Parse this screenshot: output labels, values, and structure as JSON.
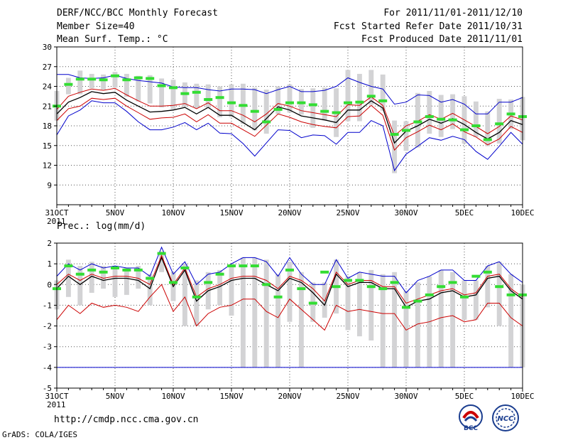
{
  "header": {
    "title": "DERF/NCC/BCC Monthly Forecast",
    "member_size": "Member Size=40",
    "variable": "Mean Surf. Temp.: °C",
    "period": "For 2011/11/01-2011/12/10",
    "refer_date": "Fcst Started Refer Date 2011/10/31",
    "produced_date": "Fcst Produced Date 2011/11/01"
  },
  "footer": {
    "url": "http://cmdp.ncc.cma.gov.cn",
    "grads": "GrADS: COLA/IGES",
    "logo_bcc": "BCC",
    "logo_ncc": "NCC"
  },
  "colors": {
    "mean": "#000000",
    "spread": "#cc0000",
    "extreme": "#0000cc",
    "box": "#d3d3d5",
    "median": "#33dd33",
    "grid": "#555555"
  },
  "chart_data": [
    {
      "type": "box-line",
      "title": "Mean Surf. Temp.: °C",
      "xlabel": "",
      "ylabel": "°C",
      "ylim": [
        6,
        30
      ],
      "yticks": [
        9,
        12,
        15,
        18,
        21,
        24,
        27,
        30
      ],
      "xtick_labels": [
        "31OCT",
        "5NOV",
        "10NOV",
        "15NOV",
        "20NOV",
        "25NOV",
        "30NOV",
        "5DEC",
        "10DEC"
      ],
      "xtick_sublabel": "2011",
      "x": [
        "31OCT",
        "1NOV",
        "2NOV",
        "3NOV",
        "4NOV",
        "5NOV",
        "6NOV",
        "7NOV",
        "8NOV",
        "9NOV",
        "10NOV",
        "11NOV",
        "12NOV",
        "13NOV",
        "14NOV",
        "15NOV",
        "16NOV",
        "17NOV",
        "18NOV",
        "19NOV",
        "20NOV",
        "21NOV",
        "22NOV",
        "23NOV",
        "24NOV",
        "25NOV",
        "26NOV",
        "27NOV",
        "28NOV",
        "29NOV",
        "30NOV",
        "1DEC",
        "2DEC",
        "3DEC",
        "4DEC",
        "5DEC",
        "6DEC",
        "7DEC",
        "8DEC",
        "9DEC",
        "10DEC"
      ],
      "series": [
        {
          "name": "ensemble mean",
          "values": [
            19.8,
            21.6,
            22.3,
            23.2,
            22.9,
            23.1,
            21.9,
            21.0,
            20.1,
            20.2,
            20.4,
            20.8,
            19.8,
            20.8,
            19.6,
            19.6,
            18.5,
            17.4,
            19.1,
            20.9,
            20.4,
            19.5,
            19.2,
            18.9,
            18.5,
            20.4,
            20.4,
            21.8,
            20.7,
            15.4,
            17.2,
            18.0,
            19.0,
            18.4,
            19.1,
            18.2,
            17.0,
            16.0,
            17.0,
            18.8,
            18.2
          ]
        },
        {
          "name": "mean + std",
          "values": [
            20.5,
            22.5,
            23.1,
            23.6,
            23.4,
            23.7,
            22.7,
            21.8,
            21.0,
            21.0,
            21.1,
            21.4,
            20.6,
            21.5,
            20.3,
            20.3,
            19.6,
            18.6,
            19.8,
            21.4,
            21.0,
            20.3,
            20.0,
            19.7,
            19.4,
            21.2,
            21.1,
            22.4,
            21.1,
            16.5,
            18.0,
            18.7,
            19.7,
            19.0,
            19.9,
            18.9,
            17.9,
            16.8,
            17.9,
            19.5,
            18.9
          ]
        },
        {
          "name": "mean - std",
          "values": [
            18.8,
            20.6,
            21.0,
            22.2,
            22.0,
            22.2,
            21.0,
            20.0,
            19.0,
            19.2,
            19.3,
            19.8,
            18.6,
            19.7,
            18.4,
            18.4,
            17.4,
            16.4,
            18.1,
            19.8,
            19.3,
            18.6,
            18.2,
            17.9,
            17.7,
            19.4,
            19.5,
            21.1,
            19.6,
            14.3,
            16.2,
            17.1,
            18.1,
            17.4,
            18.3,
            17.1,
            16.3,
            15.1,
            16.0,
            17.9,
            17.0
          ]
        },
        {
          "name": "ensemble max",
          "values": [
            25.8,
            25.8,
            25.3,
            25.2,
            25.3,
            25.7,
            25.2,
            24.9,
            24.7,
            24.5,
            23.9,
            23.8,
            23.8,
            23.5,
            23.3,
            23.6,
            23.6,
            23.5,
            22.9,
            23.5,
            24.0,
            23.2,
            23.2,
            23.4,
            24.0,
            25.3,
            24.6,
            24.0,
            23.6,
            21.3,
            21.6,
            22.7,
            22.6,
            21.6,
            22.0,
            21.3,
            19.8,
            19.8,
            21.6,
            21.6,
            22.3
          ]
        },
        {
          "name": "ensemble min",
          "values": [
            16.6,
            19.5,
            20.4,
            21.8,
            21.5,
            21.5,
            20.2,
            18.6,
            17.4,
            17.4,
            17.8,
            18.5,
            17.4,
            18.4,
            16.9,
            16.8,
            15.3,
            13.4,
            15.4,
            17.4,
            17.3,
            16.2,
            16.6,
            16.5,
            15.2,
            17.0,
            17.0,
            18.8,
            18.0,
            11.2,
            13.7,
            14.9,
            16.2,
            15.8,
            16.4,
            15.9,
            14.1,
            12.9,
            14.9,
            17.0,
            15.2
          ]
        }
      ],
      "boxes": {
        "upper": [
          23.3,
          25.3,
          26.4,
          25.9,
          25.8,
          26.2,
          25.9,
          25.6,
          25.7,
          25.2,
          25.0,
          24.6,
          24.4,
          24.3,
          24.0,
          24.3,
          24.4,
          23.8,
          23.5,
          24.0,
          24.3,
          23.6,
          23.7,
          23.8,
          23.7,
          26.5,
          25.9,
          26.5,
          25.8,
          18.8,
          18.7,
          23.0,
          23.3,
          22.7,
          22.8,
          22.5,
          21.7,
          20.2,
          22.1,
          22.0,
          22.4
        ],
        "lower": [
          18.8,
          22.8,
          22.8,
          23.7,
          23.5,
          23.8,
          22.4,
          21.7,
          21.4,
          20.8,
          20.5,
          20.9,
          20.7,
          20.7,
          19.3,
          19.3,
          18.3,
          17.3,
          16.8,
          19.8,
          20.0,
          19.7,
          17.7,
          18.8,
          16.3,
          18.7,
          18.7,
          21.2,
          20.3,
          10.8,
          14.2,
          14.7,
          16.8,
          16.3,
          17.5,
          15.3,
          16.3,
          14.9,
          15.3,
          17.5,
          15.8
        ],
        "median": [
          21.0,
          24.3,
          25.1,
          25.1,
          25.0,
          25.6,
          25.0,
          25.3,
          25.2,
          24.1,
          23.8,
          22.9,
          23.1,
          22.0,
          22.3,
          21.5,
          21.1,
          20.2,
          18.6,
          20.5,
          21.5,
          21.5,
          21.2,
          20.2,
          20.0,
          21.5,
          21.6,
          22.5,
          21.8,
          16.7,
          17.3,
          18.6,
          19.4,
          19.0,
          18.9,
          17.4,
          18.0,
          15.9,
          18.3,
          19.8,
          19.4
        ]
      }
    },
    {
      "type": "box-line",
      "title": "Prec.: log(mm/d)",
      "xlabel": "",
      "ylabel": "log(mm/d)",
      "ylim": [
        -5,
        2
      ],
      "yticks": [
        -5,
        -4,
        -3,
        -2,
        -1,
        0,
        1,
        2
      ],
      "xtick_labels": [
        "31OCT",
        "5NOV",
        "10NOV",
        "15NOV",
        "20NOV",
        "25NOV",
        "30NOV",
        "5DEC",
        "10DEC"
      ],
      "xtick_sublabel": "2011",
      "x": [
        "31OCT",
        "1NOV",
        "2NOV",
        "3NOV",
        "4NOV",
        "5NOV",
        "6NOV",
        "7NOV",
        "8NOV",
        "9NOV",
        "10NOV",
        "11NOV",
        "12NOV",
        "13NOV",
        "14NOV",
        "15NOV",
        "16NOV",
        "17NOV",
        "18NOV",
        "19NOV",
        "20NOV",
        "21NOV",
        "22NOV",
        "23NOV",
        "24NOV",
        "25NOV",
        "26NOV",
        "27NOV",
        "28NOV",
        "29NOV",
        "30NOV",
        "1DEC",
        "2DEC",
        "3DEC",
        "4DEC",
        "5DEC",
        "6DEC",
        "7DEC",
        "8DEC",
        "9DEC",
        "10DEC"
      ],
      "series": [
        {
          "name": "ensemble mean",
          "values": [
            -0.2,
            0.4,
            0.0,
            0.4,
            0.2,
            0.3,
            0.3,
            0.2,
            -0.2,
            1.3,
            -0.1,
            0.7,
            -0.8,
            -0.3,
            -0.1,
            0.2,
            0.3,
            0.3,
            0.0,
            -0.3,
            0.3,
            0.1,
            -0.4,
            -1.0,
            0.5,
            -0.1,
            0.1,
            0.1,
            -0.2,
            -0.2,
            -1.1,
            -0.8,
            -0.7,
            -0.4,
            -0.3,
            -0.6,
            -0.5,
            0.3,
            0.4,
            -0.3,
            -0.7
          ]
        },
        {
          "name": "mean + std",
          "values": [
            0.0,
            0.5,
            0.2,
            0.5,
            0.3,
            0.4,
            0.4,
            0.3,
            0.0,
            1.4,
            0.0,
            0.8,
            -0.6,
            -0.2,
            0.0,
            0.3,
            0.4,
            0.4,
            0.2,
            -0.2,
            0.4,
            0.2,
            -0.2,
            -0.8,
            0.6,
            0.0,
            0.2,
            0.2,
            -0.1,
            -0.1,
            -0.9,
            -0.7,
            -0.5,
            -0.3,
            -0.2,
            -0.5,
            -0.4,
            0.4,
            0.5,
            -0.2,
            -0.6
          ]
        },
        {
          "name": "mean - std",
          "values": [
            -1.7,
            -1.0,
            -1.4,
            -0.9,
            -1.1,
            -1.0,
            -1.1,
            -1.3,
            -0.6,
            0.0,
            -1.3,
            -0.6,
            -2.0,
            -1.4,
            -1.1,
            -1.0,
            -0.7,
            -0.7,
            -1.3,
            -1.6,
            -0.7,
            -1.2,
            -1.7,
            -2.2,
            -1.0,
            -1.3,
            -1.2,
            -1.3,
            -1.4,
            -1.4,
            -2.2,
            -1.9,
            -1.8,
            -1.6,
            -1.5,
            -1.8,
            -1.7,
            -0.9,
            -0.9,
            -1.6,
            -2.0
          ]
        },
        {
          "name": "ensemble max",
          "values": [
            0.4,
            1.0,
            0.7,
            1.0,
            0.8,
            0.9,
            0.8,
            0.8,
            0.4,
            1.8,
            0.5,
            1.1,
            0.0,
            0.5,
            0.6,
            1.0,
            1.3,
            1.3,
            1.1,
            0.4,
            1.3,
            0.5,
            0.0,
            0.0,
            1.2,
            0.3,
            0.6,
            0.5,
            0.4,
            0.4,
            -0.4,
            0.2,
            0.4,
            0.7,
            0.7,
            0.2,
            0.2,
            0.9,
            1.1,
            0.5,
            0.1
          ]
        },
        {
          "name": "ensemble min",
          "values": [
            -4.0,
            -4.0,
            -4.0,
            -4.0,
            -4.0,
            -4.0,
            -4.0,
            -4.0,
            -4.0,
            -4.0,
            -4.0,
            -4.0,
            -4.0,
            -4.0,
            -4.0,
            -4.0,
            -4.0,
            -4.0,
            -4.0,
            -4.0,
            -4.0,
            -4.0,
            -4.0,
            -4.0,
            -4.0,
            -4.0,
            -4.0,
            -4.0,
            -4.0,
            -4.0,
            -4.0,
            -4.0,
            -4.0,
            -4.0,
            -4.0,
            -4.0,
            -4.0,
            -4.0,
            -4.0,
            -4.0,
            -4.0
          ]
        }
      ],
      "boxes": {
        "upper": [
          0.2,
          1.2,
          0.9,
          1.1,
          0.9,
          0.9,
          0.8,
          0.9,
          0.5,
          1.6,
          0.6,
          1.0,
          0.2,
          0.6,
          0.7,
          1.0,
          1.3,
          1.3,
          1.2,
          0.5,
          1.1,
          0.6,
          0.1,
          0.1,
          1.2,
          0.4,
          0.6,
          0.7,
          0.5,
          0.6,
          -0.3,
          0.1,
          0.4,
          0.7,
          0.6,
          0.2,
          0.2,
          0.9,
          1.1,
          0.5,
          0.0
        ],
        "lower": [
          -1.2,
          -0.6,
          -1.0,
          -0.4,
          -0.2,
          -0.6,
          -0.5,
          -0.2,
          -1.0,
          0.6,
          -0.8,
          -2.0,
          -2.0,
          -1.2,
          -1.0,
          -1.5,
          -4.0,
          -4.0,
          -4.0,
          -4.0,
          -1.8,
          -4.0,
          -1.8,
          -1.6,
          -1.4,
          -2.2,
          -2.5,
          -2.7,
          -4.0,
          -4.0,
          -4.0,
          -4.0,
          -4.0,
          -4.0,
          -4.0,
          -1.7,
          -1.7,
          -1.1,
          -2.0,
          -4.0,
          -4.0
        ],
        "median": [
          -0.2,
          0.9,
          0.5,
          0.7,
          0.6,
          0.8,
          0.7,
          0.7,
          0.3,
          1.5,
          0.1,
          0.8,
          -0.6,
          0.1,
          0.5,
          0.9,
          0.9,
          0.9,
          0.0,
          -0.6,
          0.7,
          -0.2,
          -0.9,
          0.6,
          -0.1,
          0.2,
          0.2,
          -0.1,
          -0.2,
          0.1,
          -1.1,
          -0.8,
          -0.5,
          -0.1,
          0.1,
          -0.6,
          0.4,
          0.6,
          -0.1,
          -0.5,
          -0.5
        ]
      }
    }
  ]
}
